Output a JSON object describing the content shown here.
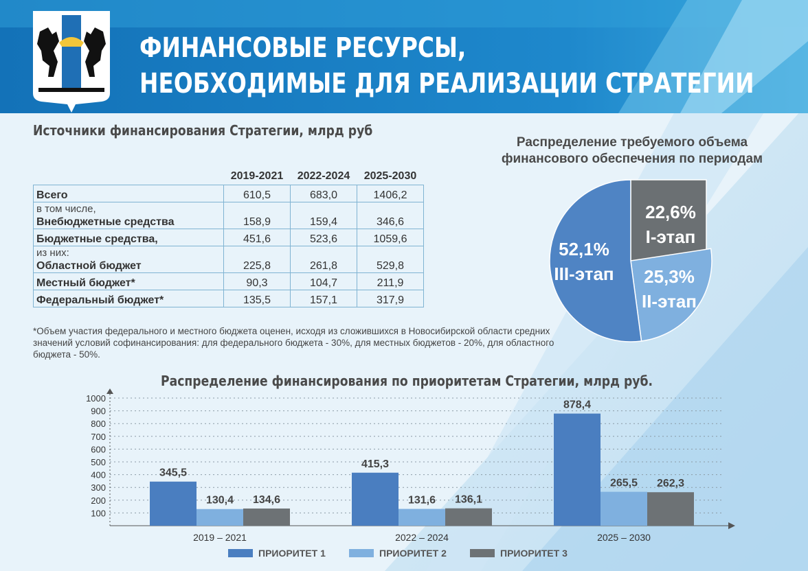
{
  "header": {
    "title_line1": "ФИНАНСОВЫЕ РЕСУРСЫ,",
    "title_line2": "НЕОБХОДИМЫЕ ДЛЯ РЕАЛИЗАЦИИ СТРАТЕГИИ",
    "emblem_icon": "novosibirsk-coat-of-arms-icon"
  },
  "colors": {
    "header_blue": "#1a7ec2",
    "prio1": "#4a7ec0",
    "prio2": "#7fb0df",
    "prio3": "#6d7275",
    "pie_stage1": "#6b7073",
    "pie_stage2": "#7fb0df",
    "pie_stage3": "#4f84c4"
  },
  "sources_table": {
    "title": "Источники финансирования Стратегии, млрд руб",
    "columns": [
      "2019-2021",
      "2022-2024",
      "2025-2030"
    ],
    "rows": [
      {
        "pre": "",
        "label": "Всего",
        "values": [
          "610,5",
          "683,0",
          "1406,2"
        ]
      },
      {
        "pre": "в том числе,",
        "label": "Внебюджетные средства",
        "values": [
          "158,9",
          "159,4",
          "346,6"
        ]
      },
      {
        "pre": "",
        "label": "Бюджетные средства,",
        "values": [
          "451,6",
          "523,6",
          "1059,6"
        ]
      },
      {
        "pre": "из них:",
        "label": "Областной бюджет",
        "values": [
          "225,8",
          "261,8",
          "529,8"
        ]
      },
      {
        "pre": "",
        "label": "Местный бюджет*",
        "values": [
          "90,3",
          "104,7",
          "211,9"
        ]
      },
      {
        "pre": "",
        "label": "Федеральный бюджет*",
        "values": [
          "135,5",
          "157,1",
          "317,9"
        ]
      }
    ],
    "footnote": "*Объем участия федерального и местного бюджета оценен, исходя из сложившихся в Новосибирской области средних значений условий софинансирования: для федерального бюджета - 30%,  для местных бюджетов - 20%, для областного бюджета - 50%."
  },
  "chart_data": [
    {
      "type": "pie",
      "title": "Распределение требуемого объема финансового обеспечения по периодам",
      "labels": [
        "I-этап",
        "II-этап",
        "III-этап"
      ],
      "values": [
        22.6,
        25.3,
        52.1
      ],
      "display": [
        "22,6%",
        "25,3%",
        "52,1%"
      ]
    },
    {
      "type": "bar",
      "title": "Распределение финансирования по приоритетам Стратегии, млрд руб.",
      "categories": [
        "2019 – 2021",
        "2022 – 2024",
        "2025 – 2030"
      ],
      "series": [
        {
          "name": "ПРИОРИТЕТ 1",
          "values": [
            345.5,
            415.3,
            878.4
          ],
          "labels": [
            "345,5",
            "415,3",
            "878,4"
          ]
        },
        {
          "name": "ПРИОРИТЕТ 2",
          "values": [
            130.4,
            131.6,
            265.5
          ],
          "labels": [
            "130,4",
            "131,6",
            "265,5"
          ]
        },
        {
          "name": "ПРИОРИТЕТ 3",
          "values": [
            134.6,
            136.1,
            262.3
          ],
          "labels": [
            "134,6",
            "136,1",
            "262,3"
          ]
        }
      ],
      "yticks": [
        "100",
        "200",
        "300",
        "400",
        "500",
        "600",
        "700",
        "800",
        "900",
        "1000"
      ],
      "ylim": [
        0,
        1000
      ],
      "xlabel": "",
      "ylabel": ""
    }
  ]
}
